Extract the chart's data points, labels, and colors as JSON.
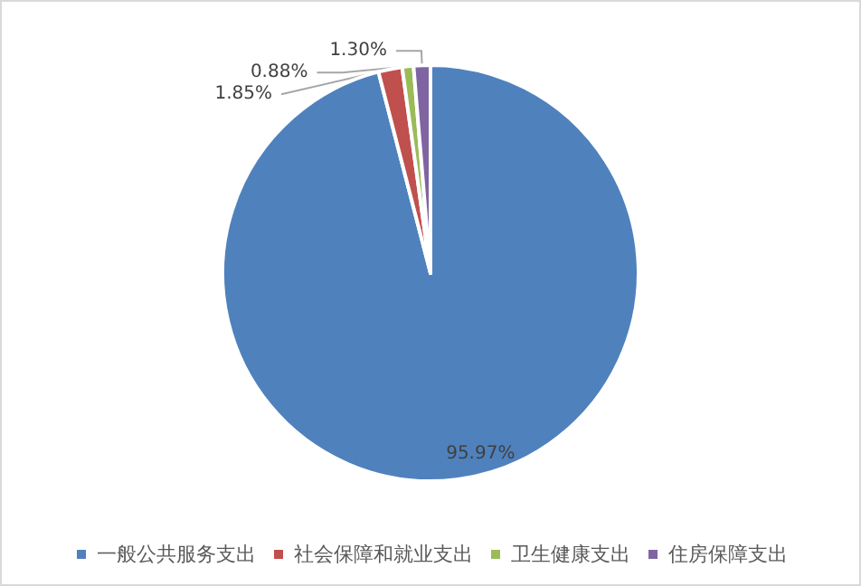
{
  "chart_data": {
    "type": "pie",
    "categories": [
      "一般公共服务支出",
      "社会保障和就业支出",
      "卫生健康支出",
      "住房保障支出"
    ],
    "values": [
      95.97,
      1.85,
      0.88,
      1.3
    ],
    "colors": [
      "#4f81bd",
      "#c0504d",
      "#9bbb59",
      "#8064a2"
    ],
    "value_labels": [
      "95.97%",
      "1.85%",
      "0.88%",
      "1.30%"
    ],
    "legend": "bottom"
  }
}
